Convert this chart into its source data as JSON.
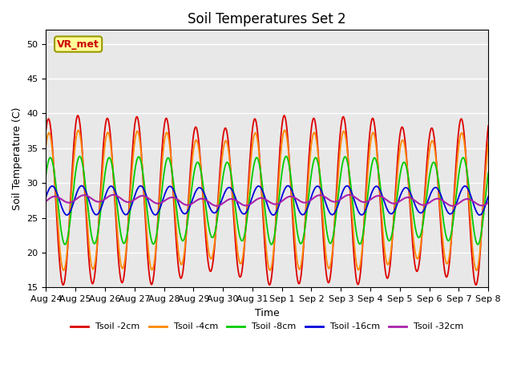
{
  "title": "Soil Temperatures Set 2",
  "xlabel": "Time",
  "ylabel": "Soil Temperature (C)",
  "ylim": [
    15,
    52
  ],
  "yticks": [
    15,
    20,
    25,
    30,
    35,
    40,
    45,
    50
  ],
  "background_color": "#e8e8e8",
  "watermark_text": "VR_met",
  "watermark_bg": "#ffff99",
  "watermark_fg": "#cc0000",
  "watermark_edge": "#999900",
  "series_colors": [
    "#dd0000",
    "#ff8800",
    "#00cc00",
    "#0000dd",
    "#aa22aa"
  ],
  "series_labels": [
    "Tsoil -2cm",
    "Tsoil -4cm",
    "Tsoil -8cm",
    "Tsoil -16cm",
    "Tsoil -32cm"
  ],
  "x_tick_labels": [
    "Aug 24",
    "Aug 25",
    "Aug 26",
    "Aug 27",
    "Aug 28",
    "Aug 29",
    "Aug 30",
    "Aug 31",
    "Sep 1",
    "Sep 2",
    "Sep 3",
    "Sep 4",
    "Sep 5",
    "Sep 6",
    "Sep 7",
    "Sep 8"
  ],
  "num_days": 15,
  "pts_per_day": 144,
  "base_temp": 27.5,
  "amp2": 11.5,
  "amp4": 9.5,
  "amp8": 6.0,
  "amp16": 2.0,
  "amp32": 0.5,
  "phase2": 0.5,
  "phase4": 0.6,
  "phase8": 0.9,
  "phase16": 1.3,
  "phase32": 1.8,
  "lw": 1.3
}
